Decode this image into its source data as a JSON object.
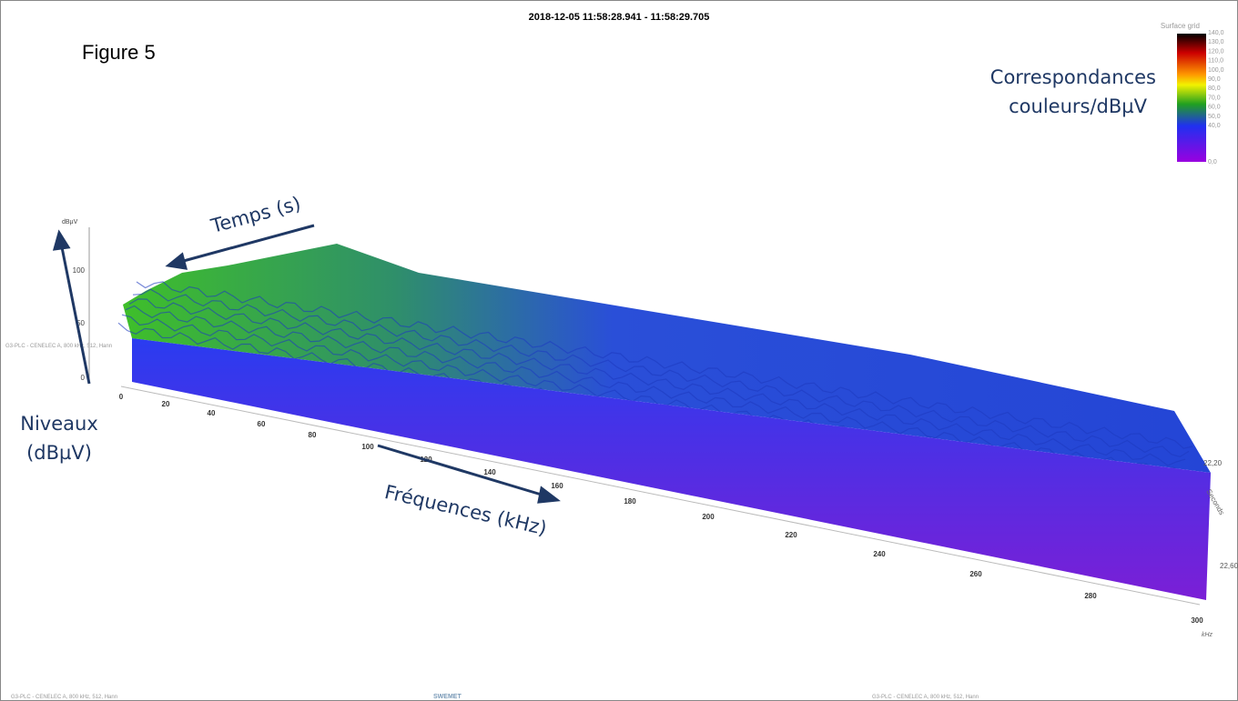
{
  "header": {
    "timestamp": "2018-12-05 11:58:28.941 - 11:58:29.705"
  },
  "annotations": {
    "figure": "Figure 5",
    "legend_note": [
      "Correspondances",
      "couleurs/dBµV"
    ],
    "time": "Temps (s)",
    "levels": [
      "Niveaux",
      "(dBµV)"
    ],
    "frequencies": "Fréquences (kHz)"
  },
  "color_scale": {
    "title": "Surface grid",
    "labels": [
      "140,0",
      "130,0",
      "120,0",
      "110,0",
      "100,0",
      "90,0",
      "80,0",
      "70,0",
      "60,0",
      "50,0",
      "40,0",
      "0,0"
    ]
  },
  "level_axis": {
    "unit": "dBµV",
    "ticks": [
      "0",
      "50",
      "100"
    ]
  },
  "frequency_axis": {
    "unit": "kHz",
    "ticks": [
      "0",
      "20",
      "40",
      "60",
      "80",
      "100",
      "120",
      "140",
      "160",
      "180",
      "200",
      "220",
      "240",
      "260",
      "280",
      "300"
    ]
  },
  "time_axis": {
    "unit": "Seconds",
    "ticks": [
      "22,20",
      "22,60"
    ]
  },
  "side_label": "G3-PLC - CENELEC A, 800 kHz, 512, Hann",
  "footer": {
    "left": "G3-PLC - CENELEC A, 800 kHz, 512, Hann",
    "center": "SWEMET",
    "right": "G3-PLC - CENELEC A, 800 kHz, 512, Hann"
  }
}
